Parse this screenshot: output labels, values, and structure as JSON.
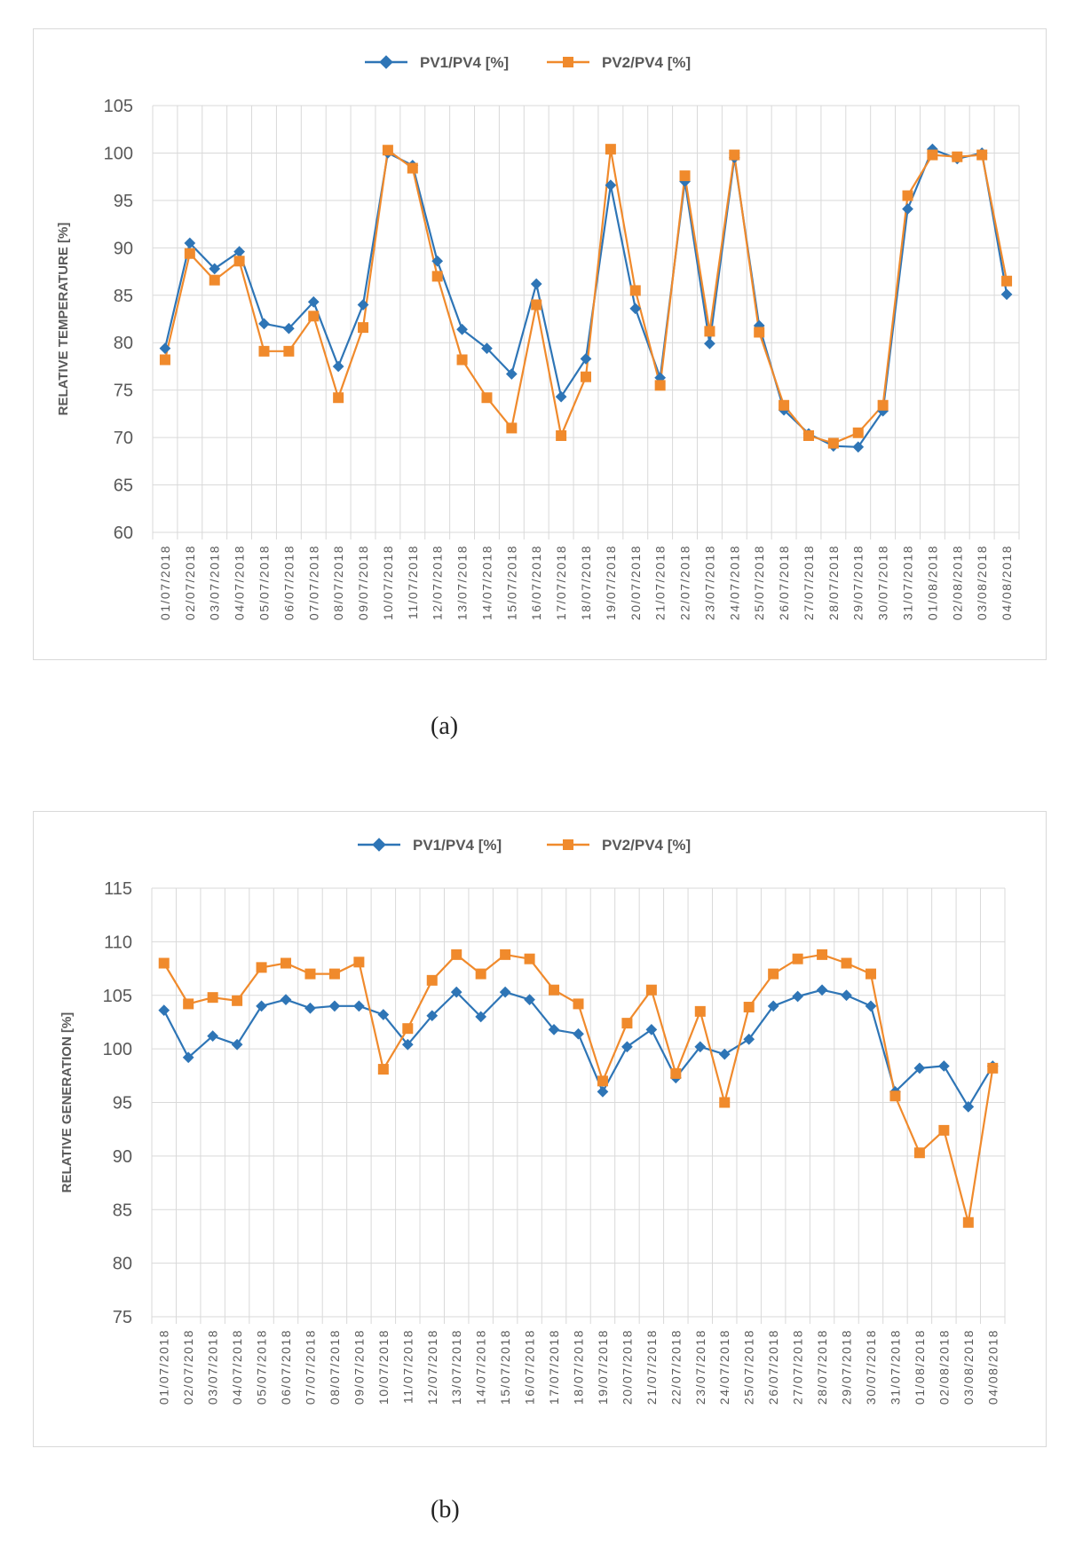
{
  "captions": {
    "a": "(a)",
    "b": "(b)"
  },
  "colors": {
    "pv1": "#2e75b6",
    "pv2": "#f08a2c",
    "grid": "#d9d9d9"
  },
  "chart_data": [
    {
      "type": "line",
      "ylabel": "RELATIVE TEMPERATURE [%]",
      "ylim": [
        60,
        105
      ],
      "ytick_step": 5,
      "categories": [
        "01/07/2018",
        "02/07/2018",
        "03/07/2018",
        "04/07/2018",
        "05/07/2018",
        "06/07/2018",
        "07/07/2018",
        "08/07/2018",
        "09/07/2018",
        "10/07/2018",
        "11/07/2018",
        "12/07/2018",
        "13/07/2018",
        "14/07/2018",
        "15/07/2018",
        "16/07/2018",
        "17/07/2018",
        "18/07/2018",
        "19/07/2018",
        "20/07/2018",
        "21/07/2018",
        "22/07/2018",
        "23/07/2018",
        "24/07/2018",
        "25/07/2018",
        "26/07/2018",
        "27/07/2018",
        "28/07/2018",
        "29/07/2018",
        "30/07/2018",
        "31/07/2018",
        "01/08/2018",
        "02/08/2018",
        "03/08/2018",
        "04/08/2018"
      ],
      "series": [
        {
          "name": "PV1/PV4 [%]",
          "marker": "diamond",
          "values": [
            79.4,
            90.5,
            87.8,
            89.6,
            82.0,
            81.5,
            84.3,
            77.5,
            84.0,
            100.0,
            98.7,
            88.6,
            81.4,
            79.4,
            76.7,
            86.2,
            74.3,
            78.3,
            96.6,
            83.6,
            76.3,
            97.0,
            79.9,
            99.5,
            81.8,
            72.9,
            70.4,
            69.1,
            69.0,
            72.8,
            94.1,
            100.4,
            99.4,
            100.0,
            85.1
          ]
        },
        {
          "name": "PV2/PV4 [%]",
          "marker": "square",
          "values": [
            78.2,
            89.4,
            86.6,
            88.6,
            79.1,
            79.1,
            82.8,
            74.2,
            81.6,
            100.3,
            98.4,
            87.0,
            78.2,
            74.2,
            71.0,
            84.0,
            70.2,
            76.4,
            100.4,
            85.5,
            75.5,
            97.6,
            81.2,
            99.8,
            81.1,
            73.4,
            70.2,
            69.4,
            70.5,
            73.4,
            95.5,
            99.8,
            99.6,
            99.8,
            86.5
          ]
        }
      ]
    },
    {
      "type": "line",
      "ylabel": "RELATIVE GENERATION [%]",
      "ylim": [
        75,
        115
      ],
      "ytick_step": 5,
      "categories": [
        "01/07/2018",
        "02/07/2018",
        "03/07/2018",
        "04/07/2018",
        "05/07/2018",
        "06/07/2018",
        "07/07/2018",
        "08/07/2018",
        "09/07/2018",
        "10/07/2018",
        "11/07/2018",
        "12/07/2018",
        "13/07/2018",
        "14/07/2018",
        "15/07/2018",
        "16/07/2018",
        "17/07/2018",
        "18/07/2018",
        "19/07/2018",
        "20/07/2018",
        "21/07/2018",
        "22/07/2018",
        "23/07/2018",
        "24/07/2018",
        "25/07/2018",
        "26/07/2018",
        "27/07/2018",
        "28/07/2018",
        "29/07/2018",
        "30/07/2018",
        "31/07/2018",
        "01/08/2018",
        "02/08/2018",
        "03/08/2018",
        "04/08/2018"
      ],
      "series": [
        {
          "name": "PV1/PV4 [%]",
          "marker": "diamond",
          "values": [
            103.6,
            99.2,
            101.2,
            100.4,
            104.0,
            104.6,
            103.8,
            104.0,
            104.0,
            103.2,
            100.4,
            103.1,
            105.3,
            103.0,
            105.3,
            104.6,
            101.8,
            101.4,
            96.0,
            100.2,
            101.8,
            97.3,
            100.2,
            99.5,
            100.9,
            104.0,
            104.9,
            105.5,
            105.0,
            104.0,
            96.0,
            98.2,
            98.4,
            94.6,
            98.4
          ]
        },
        {
          "name": "PV2/PV4 [%]",
          "marker": "square",
          "values": [
            108.0,
            104.2,
            104.8,
            104.5,
            107.6,
            108.0,
            107.0,
            107.0,
            108.1,
            98.1,
            101.9,
            106.4,
            108.8,
            107.0,
            108.8,
            108.4,
            105.5,
            104.2,
            97.0,
            102.4,
            105.5,
            97.7,
            103.5,
            95.0,
            103.9,
            107.0,
            108.4,
            108.8,
            108.0,
            107.0,
            95.6,
            90.3,
            92.4,
            83.8,
            98.2
          ]
        }
      ]
    }
  ]
}
